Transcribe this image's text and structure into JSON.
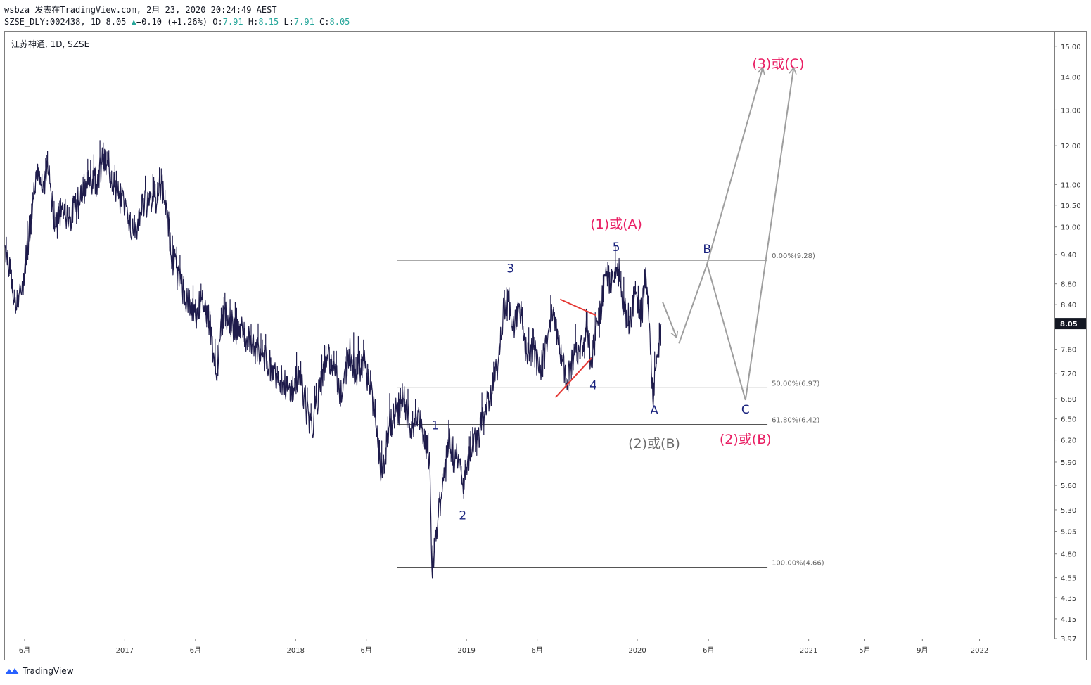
{
  "header": {
    "line1": "wsbza 发表在TradingView.com, 2月 23, 2020 20:24:49 AEST",
    "symbol": "SZSE_DLY:002438,",
    "interval_price": "1D 8.05",
    "change": "+0.10 (+1.26%)",
    "o_label": "O:",
    "o_value": "7.91",
    "h_label": "H:",
    "h_value": "8.15",
    "l_label": "L:",
    "l_value": "7.91",
    "c_label": "C:",
    "c_value": "8.05"
  },
  "symbol_label": "江苏神通, 1D, SZSE",
  "brand": {
    "name": "TradingView",
    "logo_icon": "tradingview-logo-icon"
  },
  "chart_data": {
    "type": "line",
    "scale": "log",
    "series_color": "#1e1b4b",
    "ylim": [
      3.97,
      15.5
    ],
    "xlim": [
      "2016-04-20",
      "2022-06-10"
    ],
    "y_ticks": [
      "15.00",
      "14.00",
      "13.00",
      "12.00",
      "11.00",
      "10.50",
      "10.00",
      "9.40",
      "8.80",
      "8.40",
      "7.60",
      "7.20",
      "6.80",
      "6.50",
      "6.20",
      "5.90",
      "5.60",
      "5.30",
      "5.05",
      "4.80",
      "4.55",
      "4.35",
      "4.15",
      "3.97"
    ],
    "last_price": "8.05",
    "x_ticks": [
      {
        "label": "6月",
        "date": "2016-06-01"
      },
      {
        "label": "2017",
        "date": "2017-01-01"
      },
      {
        "label": "6月",
        "date": "2017-06-01"
      },
      {
        "label": "2018",
        "date": "2018-01-01"
      },
      {
        "label": "6月",
        "date": "2018-06-01"
      },
      {
        "label": "2019",
        "date": "2019-01-01"
      },
      {
        "label": "6月",
        "date": "2019-06-01"
      },
      {
        "label": "2020",
        "date": "2020-01-01"
      },
      {
        "label": "6月",
        "date": "2020-06-01"
      },
      {
        "label": "2021",
        "date": "2021-01-01"
      },
      {
        "label": "5月",
        "date": "2021-05-01"
      },
      {
        "label": "9月",
        "date": "2021-09-01"
      },
      {
        "label": "2022",
        "date": "2022-01-01"
      }
    ],
    "price_path": [
      [
        "2016-04-20",
        9.6
      ],
      [
        "2016-05-01",
        9.0
      ],
      [
        "2016-05-15",
        8.3
      ],
      [
        "2016-05-25",
        8.6
      ],
      [
        "2016-06-10",
        9.8
      ],
      [
        "2016-06-25",
        11.3
      ],
      [
        "2016-07-10",
        10.8
      ],
      [
        "2016-07-20",
        11.6
      ],
      [
        "2016-08-05",
        10.0
      ],
      [
        "2016-08-20",
        10.4
      ],
      [
        "2016-09-05",
        10.2
      ],
      [
        "2016-09-25",
        10.6
      ],
      [
        "2016-10-15",
        11.0
      ],
      [
        "2016-11-05",
        11.2
      ],
      [
        "2016-11-15",
        11.6
      ],
      [
        "2016-12-01",
        11.3
      ],
      [
        "2016-12-20",
        10.7
      ],
      [
        "2017-01-05",
        10.5
      ],
      [
        "2017-01-20",
        9.8
      ],
      [
        "2017-02-05",
        10.4
      ],
      [
        "2017-02-25",
        10.7
      ],
      [
        "2017-03-10",
        10.5
      ],
      [
        "2017-03-20",
        11.1
      ],
      [
        "2017-04-01",
        10.2
      ],
      [
        "2017-04-15",
        9.2
      ],
      [
        "2017-05-01",
        8.8
      ],
      [
        "2017-05-15",
        8.5
      ],
      [
        "2017-06-01",
        8.2
      ],
      [
        "2017-06-15",
        8.5
      ],
      [
        "2017-07-01",
        8.1
      ],
      [
        "2017-07-15",
        7.2
      ],
      [
        "2017-08-01",
        8.3
      ],
      [
        "2017-08-20",
        8.0
      ],
      [
        "2017-09-10",
        7.9
      ],
      [
        "2017-10-01",
        7.7
      ],
      [
        "2017-10-20",
        7.5
      ],
      [
        "2017-11-10",
        7.3
      ],
      [
        "2017-12-01",
        7.1
      ],
      [
        "2017-12-20",
        6.9
      ],
      [
        "2018-01-10",
        7.2
      ],
      [
        "2018-01-25",
        6.6
      ],
      [
        "2018-02-05",
        6.3
      ],
      [
        "2018-02-20",
        6.9
      ],
      [
        "2018-03-10",
        7.5
      ],
      [
        "2018-03-25",
        7.3
      ],
      [
        "2018-04-10",
        6.8
      ],
      [
        "2018-04-25",
        7.6
      ],
      [
        "2018-05-10",
        7.2
      ],
      [
        "2018-05-25",
        7.4
      ],
      [
        "2018-06-10",
        7.0
      ],
      [
        "2018-06-25",
        6.2
      ],
      [
        "2018-07-05",
        5.7
      ],
      [
        "2018-07-20",
        6.4
      ],
      [
        "2018-08-05",
        6.6
      ],
      [
        "2018-08-20",
        6.8
      ],
      [
        "2018-09-05",
        6.3
      ],
      [
        "2018-09-20",
        6.6
      ],
      [
        "2018-10-05",
        6.2
      ],
      [
        "2018-10-15",
        5.8
      ],
      [
        "2018-10-19",
        4.66
      ],
      [
        "2018-11-01",
        5.2
      ],
      [
        "2018-11-15",
        5.7
      ],
      [
        "2018-11-25",
        6.3
      ],
      [
        "2018-12-05",
        5.9
      ],
      [
        "2018-12-15",
        6.0
      ],
      [
        "2018-12-25",
        5.5
      ],
      [
        "2019-01-10",
        6.1
      ],
      [
        "2019-01-25",
        6.2
      ],
      [
        "2019-02-10",
        6.6
      ],
      [
        "2019-02-25",
        7.0
      ],
      [
        "2019-03-10",
        7.4
      ],
      [
        "2019-03-20",
        8.2
      ],
      [
        "2019-04-01",
        8.5
      ],
      [
        "2019-04-10",
        8.0
      ],
      [
        "2019-04-25",
        8.3
      ],
      [
        "2019-05-10",
        7.5
      ],
      [
        "2019-05-25",
        7.6
      ],
      [
        "2019-06-05",
        7.2
      ],
      [
        "2019-06-20",
        7.7
      ],
      [
        "2019-07-05",
        8.3
      ],
      [
        "2019-07-20",
        7.5
      ],
      [
        "2019-08-05",
        7.1
      ],
      [
        "2019-08-20",
        7.5
      ],
      [
        "2019-09-05",
        7.7
      ],
      [
        "2019-09-15",
        7.9
      ],
      [
        "2019-09-25",
        7.3
      ],
      [
        "2019-10-05",
        8.0
      ],
      [
        "2019-10-15",
        8.3
      ],
      [
        "2019-10-25",
        9.0
      ],
      [
        "2019-11-05",
        8.8
      ],
      [
        "2019-11-15",
        9.2
      ],
      [
        "2019-11-25",
        8.9
      ],
      [
        "2019-12-05",
        8.3
      ],
      [
        "2019-12-15",
        8.1
      ],
      [
        "2019-12-25",
        8.5
      ],
      [
        "2020-01-10",
        8.2
      ],
      [
        "2020-01-20",
        8.9
      ],
      [
        "2020-02-03",
        6.8
      ],
      [
        "2020-02-10",
        7.3
      ],
      [
        "2020-02-21",
        8.05
      ]
    ],
    "fibonacci": {
      "start_date": "2018-08-05",
      "end_date": "2020-10-05",
      "levels": [
        {
          "label": "0.00%(9.28)",
          "price": 9.28
        },
        {
          "label": "50.00%(6.97)",
          "price": 6.97
        },
        {
          "label": "61.80%(6.42)",
          "price": 6.42
        },
        {
          "label": "100.00%(4.66)",
          "price": 4.66
        }
      ]
    },
    "wave_labels": [
      {
        "text": "1",
        "date": "2018-10-26",
        "price": 6.4,
        "color": "#1a237e"
      },
      {
        "text": "2",
        "date": "2018-12-24",
        "price": 5.23,
        "color": "#1a237e"
      },
      {
        "text": "3",
        "date": "2019-04-05",
        "price": 9.1,
        "color": "#1a237e"
      },
      {
        "text": "4",
        "date": "2019-09-29",
        "price": 7.0,
        "color": "#1a237e"
      },
      {
        "text": "5",
        "date": "2019-11-17",
        "price": 9.55,
        "color": "#1a237e"
      },
      {
        "text": "(1)或(A)",
        "date": "2019-11-17",
        "price": 10.05,
        "color": "#e91e63"
      },
      {
        "text": "A",
        "date": "2020-02-06",
        "price": 6.62,
        "color": "#1a237e"
      },
      {
        "text": "(2)或(B)",
        "date": "2020-02-06",
        "price": 6.14,
        "color": "#6b6b6b"
      },
      {
        "text": "B",
        "date": "2020-05-29",
        "price": 9.5,
        "color": "#1a237e"
      },
      {
        "text": "C",
        "date": "2020-08-19",
        "price": 6.63,
        "color": "#1a237e"
      },
      {
        "text": "(2)或(B)",
        "date": "2020-08-19",
        "price": 6.2,
        "color": "#e91e63"
      },
      {
        "text": "(3)或(C)",
        "date": "2020-10-28",
        "price": 14.4,
        "color": "#e91e63"
      }
    ],
    "triangle_lines": [
      {
        "from": [
          "2019-07-20",
          8.5
        ],
        "to": [
          "2019-10-05",
          8.2
        ],
        "color": "#e53935"
      },
      {
        "from": [
          "2019-07-10",
          6.82
        ],
        "to": [
          "2019-09-25",
          7.45
        ],
        "color": "#e53935"
      }
    ],
    "projection_paths": [
      {
        "points": [
          [
            "2020-02-24",
            8.45
          ],
          [
            "2020-03-25",
            7.8
          ]
        ],
        "color": "#9e9e9e"
      },
      {
        "points": [
          [
            "2020-03-30",
            7.7
          ],
          [
            "2020-05-29",
            9.2
          ],
          [
            "2020-08-19",
            6.78
          ],
          [
            "2020-11-30",
            14.3
          ]
        ],
        "color": "#9e9e9e"
      },
      {
        "points": [
          [
            "2020-05-29",
            9.2
          ],
          [
            "2020-09-25",
            14.3
          ]
        ],
        "color": "#9e9e9e"
      }
    ]
  }
}
